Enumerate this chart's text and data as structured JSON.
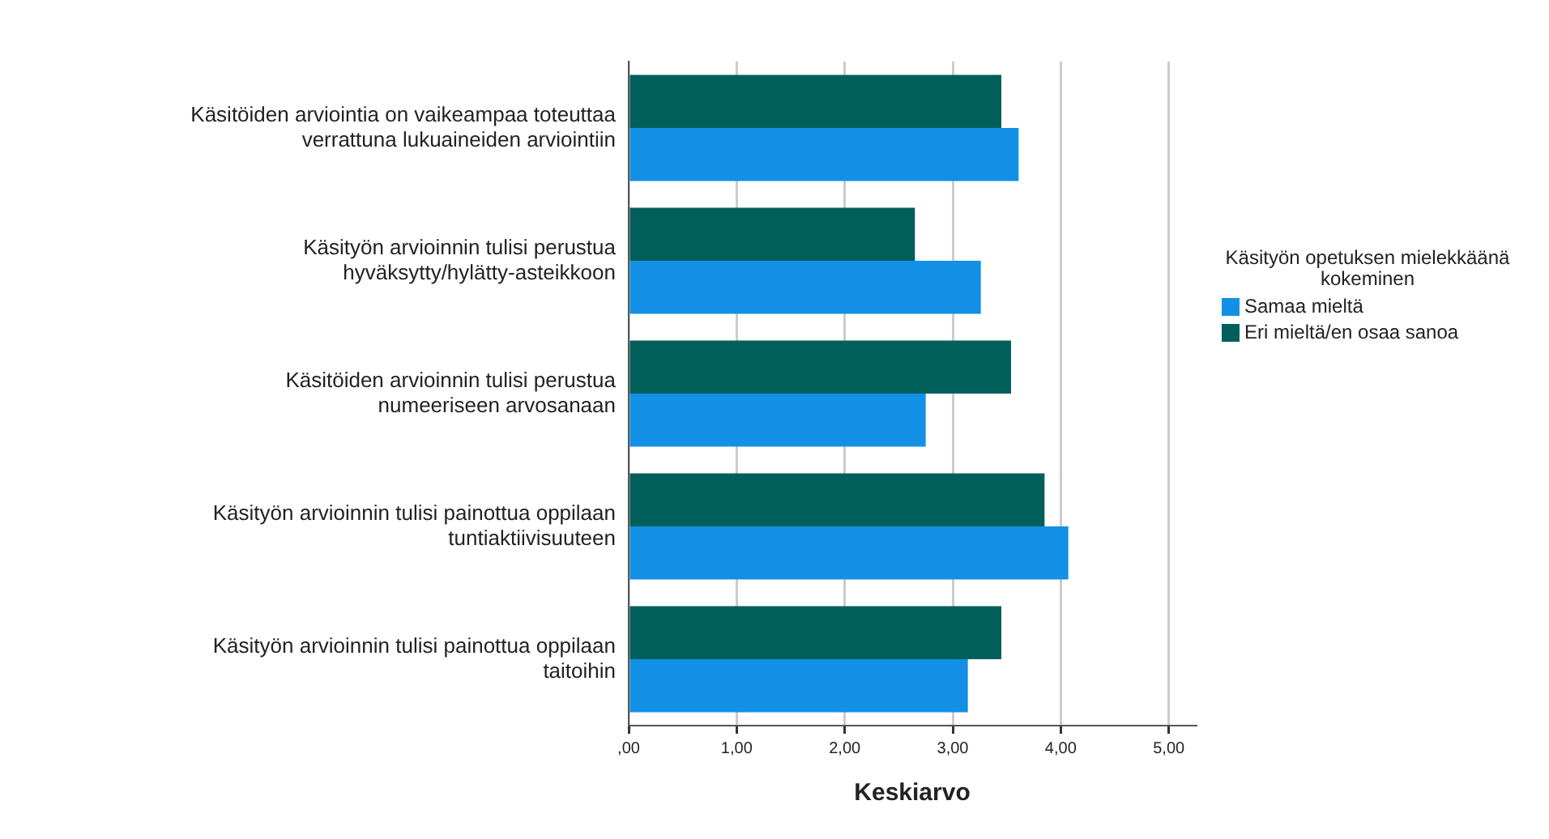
{
  "chart_data": {
    "type": "bar",
    "orientation": "horizontal",
    "xlabel": "Keskiarvo",
    "legend_title": "Käsityön opetuksen mielekkäänä kokeminen",
    "categories": [
      "Käsitöiden arviointia on vaikeampaa toteuttaa verrattuna lukuaineiden arviointiin",
      "Käsityön arvioinnin tulisi perustua hyväksytty/hylätty-asteikkoon",
      "Käsitöiden arvioinnin tulisi perustua numeeriseen arvosanaan",
      "Käsityön arvioinnin tulisi painottua oppilaan tuntiaktiivisuuteen",
      "Käsityön arvioinnin tulisi painottua oppilaan taitoihin"
    ],
    "series": [
      {
        "name": "Samaa mieltä",
        "color": "#1290e6",
        "values": [
          3.61,
          3.26,
          2.75,
          4.07,
          3.14
        ]
      },
      {
        "name": "Eri mieltä/en osaa sanoa",
        "color": "#005f5b",
        "values": [
          3.45,
          2.65,
          3.54,
          3.85,
          3.45
        ]
      }
    ],
    "xlim": [
      0,
      5.25
    ],
    "xticks": [
      {
        "value": 0,
        "label": ",00"
      },
      {
        "value": 1,
        "label": "1,00"
      },
      {
        "value": 2,
        "label": "2,00"
      },
      {
        "value": 3,
        "label": "3,00"
      },
      {
        "value": 4,
        "label": "4,00"
      },
      {
        "value": 5,
        "label": "5,00"
      }
    ],
    "grid": "x",
    "legend": "right"
  }
}
